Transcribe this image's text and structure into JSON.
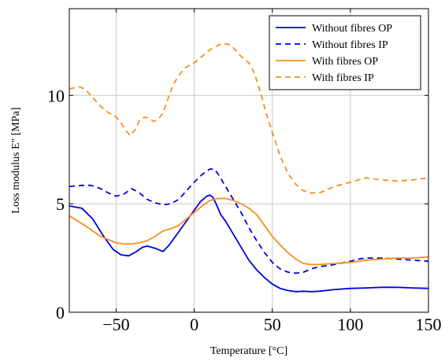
{
  "chart_data": {
    "type": "line",
    "title": "",
    "xlabel": "Temperature [°C]",
    "ylabel": "Loss modulus E\" [MPa]",
    "xlim": [
      -80,
      150
    ],
    "ylim": [
      0,
      14
    ],
    "xticks": [
      -50,
      0,
      50,
      100,
      150
    ],
    "yticks": [
      0,
      5,
      10
    ],
    "xtick_labels": [
      "−50",
      "0",
      "50",
      "100",
      "150"
    ],
    "ytick_labels": [
      "0",
      "5",
      "10"
    ],
    "grid": true,
    "legend_position": "top-right",
    "series": [
      {
        "name": "Without fibres OP",
        "color": "#0000e6",
        "dash": "solid",
        "x": [
          -80,
          -72,
          -65,
          -58,
          -52,
          -47,
          -42,
          -37,
          -33,
          -30,
          -25,
          -20,
          -16,
          -10,
          -4,
          0,
          4,
          8,
          10,
          12,
          14,
          17,
          20,
          25,
          30,
          35,
          40,
          45,
          50,
          55,
          60,
          65,
          70,
          75,
          80,
          90,
          100,
          110,
          120,
          130,
          140,
          150
        ],
        "y": [
          4.9,
          4.8,
          4.3,
          3.5,
          2.9,
          2.65,
          2.6,
          2.8,
          3.0,
          3.05,
          2.95,
          2.8,
          3.1,
          3.7,
          4.3,
          4.7,
          5.1,
          5.35,
          5.4,
          5.3,
          5.0,
          4.5,
          4.2,
          3.6,
          3.0,
          2.4,
          1.95,
          1.6,
          1.3,
          1.1,
          1.0,
          0.95,
          0.97,
          0.95,
          0.97,
          1.05,
          1.1,
          1.12,
          1.15,
          1.15,
          1.12,
          1.1
        ]
      },
      {
        "name": "Without fibres IP",
        "color": "#0000e6",
        "dash": "dashed",
        "x": [
          -80,
          -72,
          -66,
          -60,
          -55,
          -50,
          -45,
          -40,
          -35,
          -30,
          -25,
          -20,
          -15,
          -10,
          -5,
          0,
          5,
          10,
          13,
          16,
          20,
          25,
          30,
          35,
          40,
          45,
          50,
          55,
          60,
          65,
          70,
          75,
          80,
          90,
          100,
          105,
          110,
          120,
          130,
          140,
          150
        ],
        "y": [
          5.8,
          5.85,
          5.85,
          5.7,
          5.5,
          5.35,
          5.45,
          5.7,
          5.5,
          5.2,
          5.05,
          4.95,
          5.0,
          5.2,
          5.6,
          6.0,
          6.35,
          6.6,
          6.6,
          6.3,
          5.8,
          5.2,
          4.6,
          3.9,
          3.3,
          2.75,
          2.3,
          2.0,
          1.85,
          1.8,
          1.85,
          2.0,
          2.1,
          2.2,
          2.35,
          2.45,
          2.5,
          2.5,
          2.45,
          2.4,
          2.35
        ]
      },
      {
        "name": "With fibres OP",
        "color": "#f5901e",
        "dash": "solid",
        "x": [
          -80,
          -70,
          -60,
          -50,
          -45,
          -40,
          -35,
          -30,
          -25,
          -20,
          -15,
          -10,
          -5,
          0,
          5,
          10,
          15,
          20,
          25,
          30,
          35,
          40,
          45,
          50,
          55,
          60,
          65,
          70,
          75,
          80,
          90,
          100,
          110,
          120,
          130,
          140,
          150
        ],
        "y": [
          4.45,
          4.0,
          3.5,
          3.2,
          3.15,
          3.15,
          3.2,
          3.3,
          3.5,
          3.75,
          3.85,
          4.0,
          4.3,
          4.6,
          4.9,
          5.15,
          5.25,
          5.25,
          5.15,
          5.0,
          4.8,
          4.5,
          4.0,
          3.5,
          3.1,
          2.75,
          2.45,
          2.25,
          2.2,
          2.2,
          2.25,
          2.3,
          2.4,
          2.45,
          2.5,
          2.5,
          2.55
        ]
      },
      {
        "name": "With fibres IP",
        "color": "#f5901e",
        "dash": "dashed",
        "x": [
          -80,
          -74,
          -70,
          -65,
          -60,
          -55,
          -50,
          -47,
          -44,
          -41,
          -38,
          -35,
          -32,
          -29,
          -26,
          -23,
          -20,
          -17,
          -14,
          -11,
          -8,
          -5,
          0,
          5,
          10,
          15,
          18,
          22,
          25,
          30,
          35,
          38,
          40,
          43,
          46,
          50,
          55,
          60,
          65,
          70,
          75,
          80,
          90,
          100,
          110,
          120,
          130,
          140,
          150
        ],
        "y": [
          10.3,
          10.4,
          10.3,
          9.9,
          9.5,
          9.2,
          9.0,
          8.75,
          8.4,
          8.15,
          8.4,
          8.85,
          9.0,
          8.95,
          8.8,
          8.9,
          9.2,
          9.8,
          10.4,
          10.8,
          11.1,
          11.3,
          11.5,
          11.8,
          12.1,
          12.3,
          12.4,
          12.35,
          12.2,
          11.8,
          11.5,
          11.1,
          10.7,
          10.0,
          9.2,
          8.3,
          7.2,
          6.4,
          5.9,
          5.6,
          5.5,
          5.5,
          5.8,
          6.0,
          6.2,
          6.1,
          6.05,
          6.1,
          6.2
        ]
      }
    ]
  }
}
